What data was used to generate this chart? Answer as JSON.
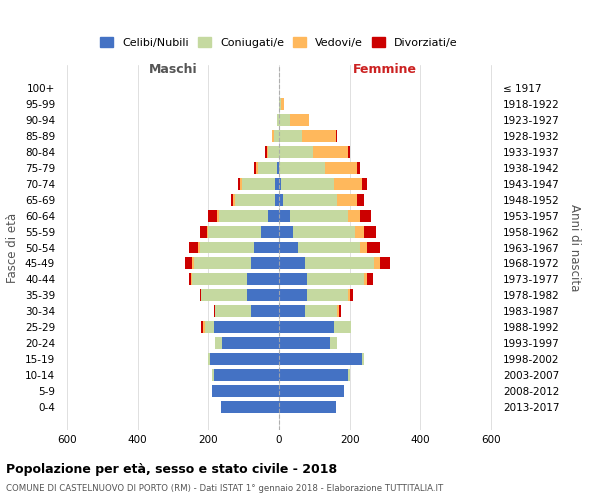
{
  "age_groups": [
    "0-4",
    "5-9",
    "10-14",
    "15-19",
    "20-24",
    "25-29",
    "30-34",
    "35-39",
    "40-44",
    "45-49",
    "50-54",
    "55-59",
    "60-64",
    "65-69",
    "70-74",
    "75-79",
    "80-84",
    "85-89",
    "90-94",
    "95-99",
    "100+"
  ],
  "birth_years": [
    "2013-2017",
    "2008-2012",
    "2003-2007",
    "1998-2002",
    "1993-1997",
    "1988-1992",
    "1983-1987",
    "1978-1982",
    "1973-1977",
    "1968-1972",
    "1963-1967",
    "1958-1962",
    "1953-1957",
    "1948-1952",
    "1943-1947",
    "1938-1942",
    "1933-1937",
    "1928-1932",
    "1923-1927",
    "1918-1922",
    "≤ 1917"
  ],
  "male": {
    "celibi": [
      165,
      190,
      185,
      195,
      160,
      185,
      80,
      90,
      90,
      80,
      70,
      50,
      30,
      10,
      10,
      5,
      0,
      0,
      0,
      0,
      0
    ],
    "coniugati": [
      0,
      0,
      5,
      5,
      20,
      25,
      100,
      130,
      155,
      160,
      155,
      150,
      140,
      115,
      95,
      55,
      30,
      15,
      5,
      0,
      0
    ],
    "vedovi": [
      0,
      0,
      0,
      0,
      0,
      5,
      0,
      0,
      5,
      5,
      5,
      5,
      5,
      5,
      5,
      5,
      5,
      5,
      0,
      0,
      0
    ],
    "divorziati": [
      0,
      0,
      0,
      0,
      0,
      5,
      5,
      5,
      5,
      20,
      25,
      20,
      25,
      5,
      5,
      5,
      5,
      0,
      0,
      0,
      0
    ]
  },
  "female": {
    "celibi": [
      160,
      185,
      195,
      235,
      145,
      155,
      75,
      80,
      80,
      75,
      55,
      40,
      30,
      10,
      5,
      0,
      0,
      0,
      0,
      0,
      0
    ],
    "coniugati": [
      0,
      0,
      5,
      5,
      20,
      50,
      90,
      115,
      160,
      195,
      175,
      175,
      165,
      155,
      150,
      130,
      95,
      65,
      30,
      5,
      0
    ],
    "vedovi": [
      0,
      0,
      0,
      0,
      0,
      0,
      5,
      5,
      10,
      15,
      20,
      25,
      35,
      55,
      80,
      90,
      100,
      95,
      55,
      10,
      0
    ],
    "divorziati": [
      0,
      0,
      0,
      0,
      0,
      0,
      5,
      10,
      15,
      30,
      35,
      35,
      30,
      20,
      15,
      10,
      5,
      5,
      0,
      0,
      0
    ]
  },
  "colors": {
    "celibi": "#4472C4",
    "coniugati": "#c5d9a0",
    "vedovi": "#FFB85C",
    "divorziati": "#CC0000"
  },
  "legend_labels": [
    "Celibi/Nubili",
    "Coniugati/e",
    "Vedovi/e",
    "Divorziati/e"
  ],
  "title": "Popolazione per età, sesso e stato civile - 2018",
  "subtitle": "COMUNE DI CASTELNUOVO DI PORTO (RM) - Dati ISTAT 1° gennaio 2018 - Elaborazione TUTTITALIA.IT",
  "xlabel_left": "Maschi",
  "xlabel_right": "Femmine",
  "ylabel_left": "Fasce di età",
  "ylabel_right": "Anni di nascita",
  "xlim": 620,
  "background_color": "#ffffff"
}
